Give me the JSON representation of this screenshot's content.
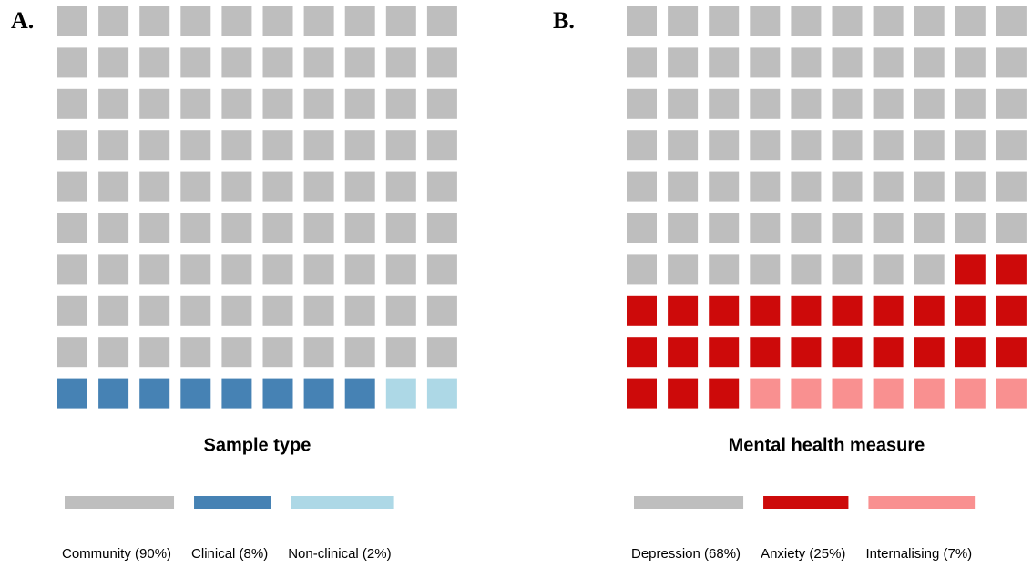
{
  "chart_data": [
    {
      "type": "waffle",
      "panel_label": "A.",
      "title": "Sample type",
      "categories": [
        "Community (90%)",
        "Clinical (8%)",
        "Non-clinical (2%)"
      ],
      "values": [
        90,
        8,
        2
      ],
      "colors": [
        "#bebebe",
        "#4682b4",
        "#add8e6"
      ]
    },
    {
      "type": "waffle",
      "panel_label": "B.",
      "title": "Mental health measure",
      "categories": [
        "Depression (68%)",
        "Anxiety (25%)",
        "Internalising (7%)"
      ],
      "values": [
        68,
        25,
        7
      ],
      "colors": [
        "#bebebe",
        "#cd0a0a",
        "#f99090"
      ]
    }
  ]
}
